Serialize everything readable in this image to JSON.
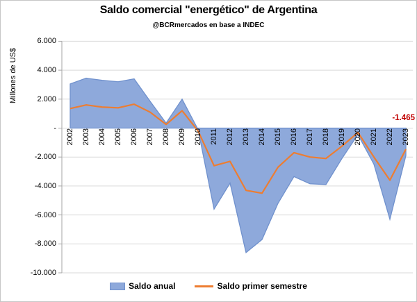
{
  "title": "Saldo comercial \"energético\" de Argentina",
  "subtitle": "@BCRmercados en base a INDEC",
  "y_axis_title": "Millones de US$",
  "legend": {
    "area_label": "Saldo anual",
    "line_label": "Saldo primer semestre"
  },
  "colors": {
    "area_fill": "#8EA9DB",
    "area_border": "#7091CD",
    "line": "#ED7D31",
    "grid": "#D9D9D9",
    "axis": "#A6A6A6",
    "annotation": "#C00000"
  },
  "chart_data": {
    "type": "area",
    "title": "Saldo comercial \"energético\" de Argentina",
    "subtitle": "@BCRmercados en base a INDEC",
    "ylabel": "Millones de US$",
    "categories": [
      "2002",
      "2003",
      "2004",
      "2005",
      "2006",
      "2007",
      "2008",
      "2009",
      "2010",
      "2011",
      "2012",
      "2013",
      "2014",
      "2015",
      "2016",
      "2017",
      "2018",
      "2019",
      "2020",
      "2021",
      "2022",
      "2023"
    ],
    "series": [
      {
        "name": "Saldo anual",
        "type": "area",
        "color": "#8EA9DB",
        "values": [
          3050,
          3450,
          3300,
          3200,
          3400,
          1850,
          350,
          2000,
          -100,
          -5600,
          -3800,
          -8600,
          -7700,
          -5200,
          -3350,
          -3850,
          -3900,
          -2100,
          -450,
          -2500,
          -6300,
          -1900
        ]
      },
      {
        "name": "Saldo primer semestre",
        "type": "line",
        "color": "#ED7D31",
        "values": [
          1350,
          1600,
          1450,
          1400,
          1650,
          1100,
          250,
          1200,
          -200,
          -2600,
          -2300,
          -4300,
          -4500,
          -2700,
          -1700,
          -2000,
          -2100,
          -1250,
          -300,
          -2000,
          -3600,
          -1465
        ]
      }
    ],
    "ylim": [
      -10000,
      6000
    ],
    "ytick_interval": 2000,
    "ytick_labels": [
      "6.000",
      "4.000",
      "2.000",
      "-",
      "-2.000",
      "-4.000",
      "-6.000",
      "-8.000",
      "-10.000"
    ],
    "grid": true,
    "legend_position": "bottom",
    "annotation": {
      "text": "-1.465",
      "series": "Saldo primer semestre",
      "category": "2023",
      "color": "#C00000"
    }
  }
}
